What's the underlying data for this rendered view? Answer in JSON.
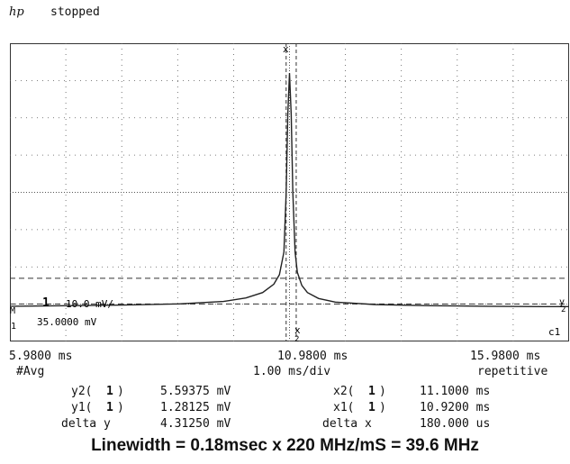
{
  "header": {
    "brand": "hp",
    "status": "stopped"
  },
  "screen": {
    "channel_marker": "1",
    "scale_text": "10.0 mV/",
    "offset_text": "35.0000 mV",
    "cursor_x1_marker": "x",
    "cursor_x2_marker": "x",
    "cursor_x2_index": "2",
    "cursor_y1_marker": "y",
    "cursor_y2_marker": "y",
    "cursor_y1_index": "1",
    "cursor_y2_index": "2",
    "left_markers": [
      "M",
      "1"
    ],
    "trace_label": "c1"
  },
  "chart_data": {
    "type": "line",
    "x_unit": "ms",
    "y_unit": "mV",
    "xlim": [
      5.98,
      15.98
    ],
    "ylim": [
      -5,
      45
    ],
    "grid": true,
    "x": [
      5.98,
      7.0,
      8.0,
      9.0,
      9.8,
      10.2,
      10.5,
      10.7,
      10.8,
      10.88,
      10.92,
      10.95,
      10.98,
      11.01,
      11.04,
      11.08,
      11.12,
      11.2,
      11.3,
      11.5,
      11.8,
      12.5,
      13.5,
      14.5,
      15.5,
      15.98
    ],
    "y": [
      0.9,
      1.0,
      1.1,
      1.3,
      1.7,
      2.3,
      3.2,
      4.6,
      6.2,
      10.0,
      20.0,
      33.0,
      40.0,
      33.0,
      20.0,
      10.0,
      6.6,
      4.4,
      3.2,
      2.2,
      1.6,
      1.2,
      1.0,
      0.9,
      0.85,
      0.85
    ]
  },
  "axis": {
    "x_left": "5.9800 ms",
    "x_center": "10.9800 ms",
    "x_right": "15.9800 ms",
    "acq_mode": "#Avg",
    "timebase": "1.00 ms/div",
    "trigger_mode": "repetitive"
  },
  "measurements": {
    "y2_label": "y2(",
    "y2_channel": "1",
    "y2_value": "5.59375 mV",
    "y1_label": "y1(",
    "y1_channel": "1",
    "y1_value": "1.28125 mV",
    "delta_y_label": "delta y",
    "delta_y_value": "4.31250 mV",
    "x2_label": "x2(",
    "x2_channel": "1",
    "x2_value": "11.1000 ms",
    "x1_label": "x1(",
    "x1_channel": "1",
    "x1_value": "10.9200 ms",
    "delta_x_label": "delta x",
    "delta_x_value": "180.000 us",
    "close_paren": ")"
  },
  "caption": "Linewidth = 0.18msec x 220 MHz/mS = 39.6 MHz",
  "colors": {
    "trace": "#222222",
    "grid": "#555555",
    "background": "#ffffff"
  }
}
